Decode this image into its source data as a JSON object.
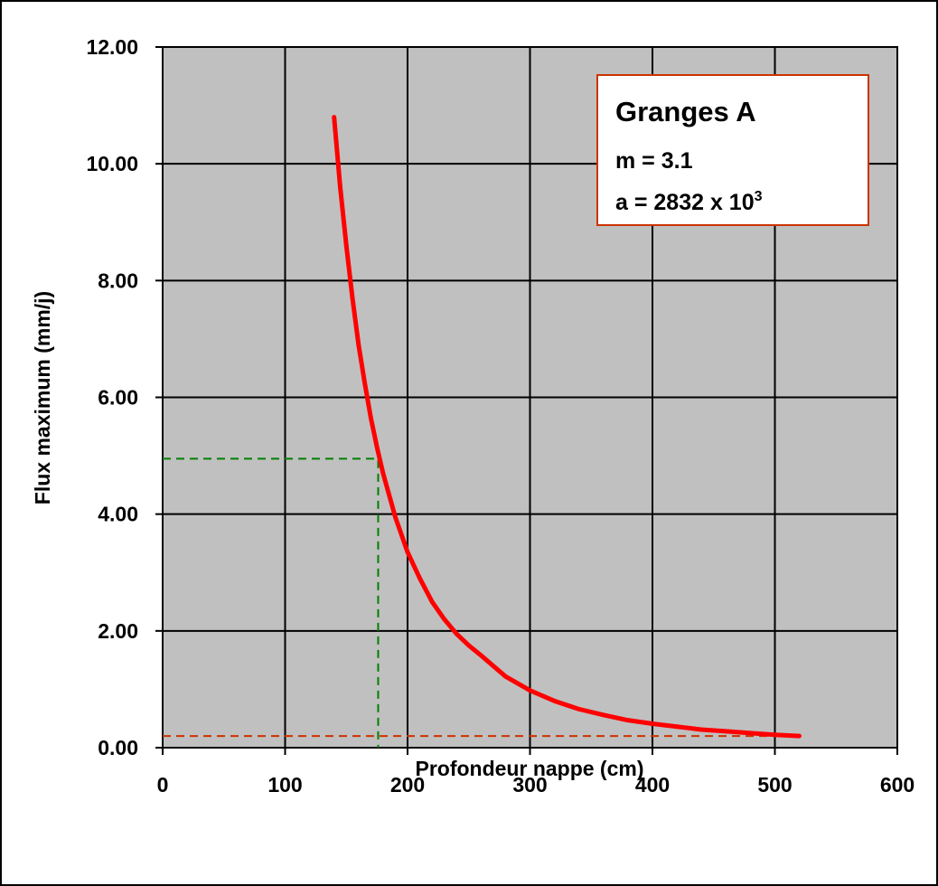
{
  "chart_data": {
    "type": "line",
    "xlabel": "Profondeur nappe (cm)",
    "ylabel": "Flux maximum (mm/j)",
    "xlim": [
      0,
      600
    ],
    "ylim": [
      0,
      12
    ],
    "x_ticks": [
      "0",
      "100",
      "200",
      "300",
      "400",
      "500",
      "600"
    ],
    "y_ticks": [
      "0.00",
      "2.00",
      "4.00",
      "6.00",
      "8.00",
      "10.00",
      "12.00"
    ],
    "x_tick_values": [
      0,
      100,
      200,
      300,
      400,
      500,
      600
    ],
    "y_tick_values": [
      0,
      2,
      4,
      6,
      8,
      10,
      12
    ],
    "grid": true,
    "plot_background": "#c0c0c0",
    "series": [
      {
        "color": "#ff0000",
        "x": [
          140,
          145,
          150,
          155,
          160,
          165,
          170,
          175,
          180,
          190,
          200,
          210,
          220,
          230,
          240,
          250,
          260,
          280,
          300,
          320,
          340,
          360,
          380,
          400,
          420,
          440,
          460,
          480,
          500,
          520
        ],
        "y": [
          10.8,
          9.6,
          8.6,
          7.7,
          6.9,
          6.25,
          5.65,
          5.15,
          4.7,
          3.95,
          3.35,
          2.9,
          2.5,
          2.2,
          1.95,
          1.75,
          1.58,
          1.22,
          0.98,
          0.8,
          0.66,
          0.56,
          0.47,
          0.41,
          0.36,
          0.31,
          0.28,
          0.25,
          0.22,
          0.2
        ]
      }
    ],
    "reference_lines": [
      {
        "color": "#008000",
        "x": 176,
        "y": 4.95
      },
      {
        "color": "#cc3300",
        "y": 0.2,
        "x_end": 520
      }
    ],
    "annotation": {
      "title": "Granges A",
      "line1": "m = 3.1",
      "line2_base": "a = 2832 x 10",
      "line2_exp": "3",
      "border_color": "#cc3300",
      "background": "#ffffff"
    }
  }
}
